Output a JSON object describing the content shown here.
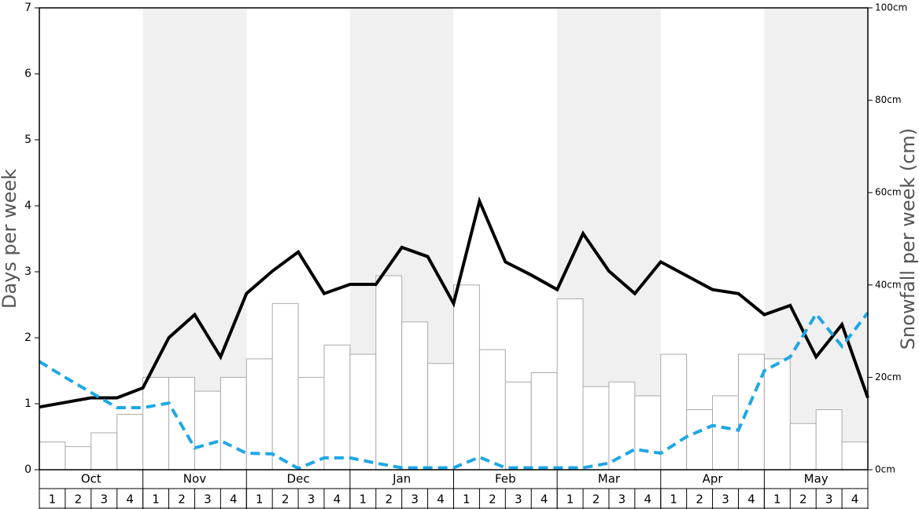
{
  "chart_data": {
    "type": "combo",
    "ylabel": "Days per week",
    "y2label": "Snowfall per week (cm)",
    "ylim": [
      0,
      7
    ],
    "yticks": [
      0,
      1,
      2,
      3,
      4,
      5,
      6,
      7
    ],
    "y2lim": [
      0,
      100
    ],
    "y2ticks": [
      {
        "value": 0,
        "label": "0cm"
      },
      {
        "value": 20,
        "label": "20cm"
      },
      {
        "value": 40,
        "label": "40cm"
      },
      {
        "value": 60,
        "label": "60cm"
      },
      {
        "value": 80,
        "label": "80cm"
      },
      {
        "value": 100,
        "label": "100cm"
      }
    ],
    "months": [
      "Oct",
      "Nov",
      "Dec",
      "Jan",
      "Feb",
      "Mar",
      "Apr",
      "May"
    ],
    "categories": [
      "1",
      "2",
      "3",
      "4",
      "1",
      "2",
      "3",
      "4",
      "1",
      "2",
      "3",
      "4",
      "1",
      "2",
      "3",
      "4",
      "1",
      "2",
      "3",
      "4",
      "1",
      "2",
      "3",
      "4",
      "1",
      "2",
      "3",
      "4",
      "1",
      "2",
      "3",
      "4"
    ],
    "xlim": [
      0,
      32
    ],
    "x": [
      0,
      1,
      2,
      3,
      4,
      5,
      6,
      7,
      8,
      9,
      10,
      11,
      12,
      13,
      14,
      15,
      16,
      17,
      18,
      19,
      20,
      21,
      22,
      23,
      24,
      25,
      26,
      27,
      28,
      29,
      30,
      31,
      32
    ],
    "series": [
      {
        "type": "bar",
        "axis": "y2",
        "color": "#ffffff",
        "values": [
          6,
          5,
          8,
          12,
          20,
          20,
          17,
          20,
          24,
          36,
          20,
          27,
          25,
          42,
          32,
          23,
          40,
          26,
          19,
          21,
          37,
          18,
          19,
          16,
          25,
          13,
          16,
          25,
          24,
          10,
          13,
          6
        ]
      },
      {
        "type": "line",
        "color": "#000000",
        "dashed": false,
        "values": [
          0.95,
          1.02,
          1.09,
          1.09,
          1.24,
          2.0,
          2.35,
          1.71,
          2.67,
          3.01,
          3.3,
          2.67,
          2.81,
          2.81,
          3.37,
          3.23,
          2.52,
          4.07,
          3.15,
          2.95,
          2.73,
          3.58,
          3.01,
          2.67,
          3.15,
          2.94,
          2.73,
          2.67,
          2.35,
          2.49,
          1.71,
          2.2,
          1.09
        ]
      },
      {
        "type": "line",
        "color": "#1ea7e6",
        "dashed": true,
        "values": [
          1.64,
          1.4,
          1.17,
          0.94,
          0.94,
          1.01,
          0.33,
          0.44,
          0.25,
          0.24,
          0.02,
          0.18,
          0.18,
          0.1,
          0.03,
          0.03,
          0.03,
          0.19,
          0.03,
          0.03,
          0.03,
          0.03,
          0.1,
          0.31,
          0.25,
          0.5,
          0.67,
          0.6,
          1.5,
          1.71,
          2.36,
          1.87,
          2.38
        ]
      }
    ]
  }
}
